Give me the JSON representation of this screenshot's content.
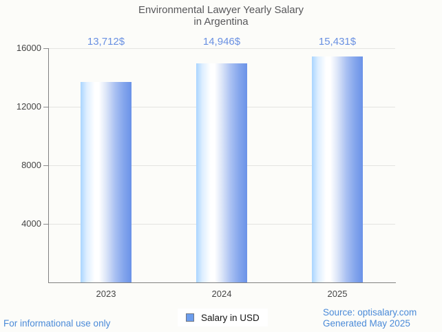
{
  "title": {
    "line1": "Environmental Lawyer Yearly Salary",
    "line2": "in Argentina"
  },
  "legend": {
    "label": "Salary in USD",
    "swatch_color": "#6c9ded"
  },
  "footer": {
    "disclaimer": "For informational use only",
    "source_line1": "Source: optisalary.com",
    "source_line2": "Generated May 2025"
  },
  "chart_data": {
    "type": "bar",
    "title": "Environmental Lawyer Yearly Salary in Argentina",
    "categories": [
      "2023",
      "2024",
      "2025"
    ],
    "values": [
      13712,
      14946,
      15431
    ],
    "annotations": [
      "13,712$",
      "14,946$",
      "15,431$"
    ],
    "series_name": "Salary in USD",
    "xlabel": "",
    "ylabel": "",
    "ylim": [
      0,
      16000
    ],
    "yticks": [
      4000,
      8000,
      12000,
      16000
    ],
    "grid": true,
    "legend_position": "bottom",
    "colors": {
      "bar_gradient_left": "#a9d5ff",
      "bar_gradient_mid": "#ffffff",
      "bar_gradient_right": "#6a92e8",
      "annotation_text": "#6990e2",
      "axis_text": "#454545",
      "footer_text": "#4a8ad8",
      "title_text": "#57575a",
      "gridline": "#e4e4e1",
      "background": "#fcfcf9"
    }
  }
}
